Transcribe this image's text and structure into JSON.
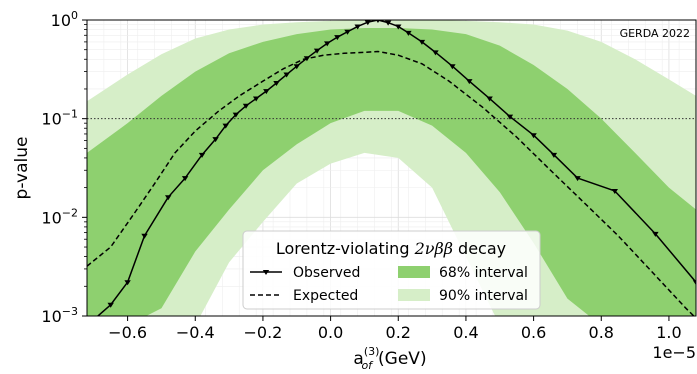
{
  "chart_data": {
    "type": "line",
    "annotation": "GERDA 2022",
    "ylabel": "p-value",
    "xlabel_main": "a",
    "xlabel_sup": "(3)",
    "xlabel_sub": "of",
    "xlabel_unit": "(GeV)",
    "x_offset_label": "1e−5",
    "xlim": [
      -0.72,
      1.08
    ],
    "ylim": [
      0.001,
      1
    ],
    "yscale": "log",
    "x_ticks": [
      -0.6,
      -0.4,
      -0.2,
      0.0,
      0.2,
      0.4,
      0.6,
      0.8,
      1.0
    ],
    "x_tick_labels": [
      "−0.6",
      "−0.4",
      "−0.2",
      "0.0",
      "0.2",
      "0.4",
      "0.6",
      "0.8",
      "1.0"
    ],
    "y_ticks": [
      {
        "value": 1,
        "base": "10",
        "exp": "0"
      },
      {
        "value": 0.1,
        "base": "10",
        "exp": "−1"
      },
      {
        "value": 0.01,
        "base": "10",
        "exp": "−2"
      },
      {
        "value": 0.001,
        "base": "10",
        "exp": "−3"
      }
    ],
    "threshold_line": 0.1,
    "grid": true,
    "legend": {
      "title_prefix": "Lorentz-violating ",
      "title_math": "2νββ",
      "title_suffix": " decay",
      "placement": "lower-center",
      "entries": [
        {
          "key": "observed",
          "label": "Observed"
        },
        {
          "key": "band68",
          "label": "68% interval"
        },
        {
          "key": "expected",
          "label": "Expected"
        },
        {
          "key": "band90",
          "label": "90% interval"
        }
      ]
    },
    "colors": {
      "band68": "#8ed06f",
      "band90": "#d6eec8",
      "observed": "#000000",
      "expected": "#000000"
    },
    "series": [
      {
        "key": "observed",
        "name": "Observed",
        "style": "solid-marker",
        "x": [
          -0.72,
          -0.65,
          -0.6,
          -0.55,
          -0.48,
          -0.43,
          -0.38,
          -0.34,
          -0.31,
          -0.28,
          -0.25,
          -0.22,
          -0.19,
          -0.16,
          -0.13,
          -0.1,
          -0.07,
          -0.04,
          -0.01,
          0.02,
          0.05,
          0.08,
          0.11,
          0.14,
          0.17,
          0.2,
          0.23,
          0.27,
          0.31,
          0.36,
          0.41,
          0.47,
          0.53,
          0.6,
          0.66,
          0.73,
          0.84,
          0.96,
          1.08
        ],
        "y": [
          0.0008,
          0.0013,
          0.0022,
          0.0065,
          0.016,
          0.025,
          0.043,
          0.062,
          0.085,
          0.11,
          0.135,
          0.16,
          0.19,
          0.23,
          0.28,
          0.34,
          0.41,
          0.49,
          0.58,
          0.67,
          0.76,
          0.86,
          0.95,
          1.0,
          0.94,
          0.86,
          0.74,
          0.6,
          0.47,
          0.34,
          0.24,
          0.16,
          0.105,
          0.068,
          0.043,
          0.025,
          0.0185,
          0.0068,
          0.0022
        ]
      },
      {
        "key": "expected",
        "name": "Expected",
        "style": "dashed",
        "x": [
          -0.72,
          -0.65,
          -0.58,
          -0.52,
          -0.46,
          -0.4,
          -0.33,
          -0.27,
          -0.2,
          -0.14,
          -0.08,
          -0.02,
          0.04,
          0.1,
          0.14,
          0.2,
          0.27,
          0.35,
          0.45,
          0.55,
          0.65,
          0.75,
          0.85,
          0.95,
          1.05,
          1.08
        ],
        "y": [
          0.0032,
          0.005,
          0.011,
          0.022,
          0.045,
          0.075,
          0.12,
          0.17,
          0.24,
          0.32,
          0.4,
          0.44,
          0.46,
          0.47,
          0.48,
          0.44,
          0.36,
          0.24,
          0.13,
          0.065,
          0.03,
          0.014,
          0.0065,
          0.0028,
          0.0012,
          0.00095
        ]
      }
    ],
    "bands": [
      {
        "key": "band90",
        "name": "90% interval",
        "x": [
          -0.72,
          -0.6,
          -0.5,
          -0.4,
          -0.3,
          -0.2,
          -0.1,
          0.0,
          0.1,
          0.2,
          0.3,
          0.4,
          0.5,
          0.6,
          0.7,
          0.8,
          0.9,
          1.0,
          1.08
        ],
        "upper": [
          0.15,
          0.28,
          0.45,
          0.65,
          0.8,
          0.9,
          0.95,
          0.98,
          1.0,
          1.0,
          1.0,
          0.98,
          0.95,
          0.9,
          0.78,
          0.6,
          0.4,
          0.25,
          0.17
        ],
        "lower": [
          0.0008,
          0.0008,
          0.0008,
          0.0008,
          0.0035,
          0.009,
          0.022,
          0.035,
          0.045,
          0.04,
          0.02,
          0.004,
          0.0008,
          0.0008,
          0.0008,
          0.0008,
          0.0008,
          0.0008,
          0.0008
        ]
      },
      {
        "key": "band68",
        "name": "68% interval",
        "x": [
          -0.72,
          -0.6,
          -0.5,
          -0.4,
          -0.3,
          -0.2,
          -0.1,
          0.0,
          0.1,
          0.2,
          0.3,
          0.4,
          0.5,
          0.6,
          0.7,
          0.8,
          0.9,
          1.0,
          1.08
        ],
        "upper": [
          0.045,
          0.09,
          0.17,
          0.3,
          0.46,
          0.6,
          0.72,
          0.8,
          0.83,
          0.83,
          0.8,
          0.72,
          0.55,
          0.35,
          0.2,
          0.1,
          0.045,
          0.02,
          0.012
        ],
        "lower": [
          0.0008,
          0.0008,
          0.0012,
          0.0045,
          0.012,
          0.03,
          0.055,
          0.09,
          0.12,
          0.12,
          0.085,
          0.045,
          0.018,
          0.0055,
          0.0015,
          0.0008,
          0.0008,
          0.0008,
          0.0008
        ]
      }
    ]
  }
}
